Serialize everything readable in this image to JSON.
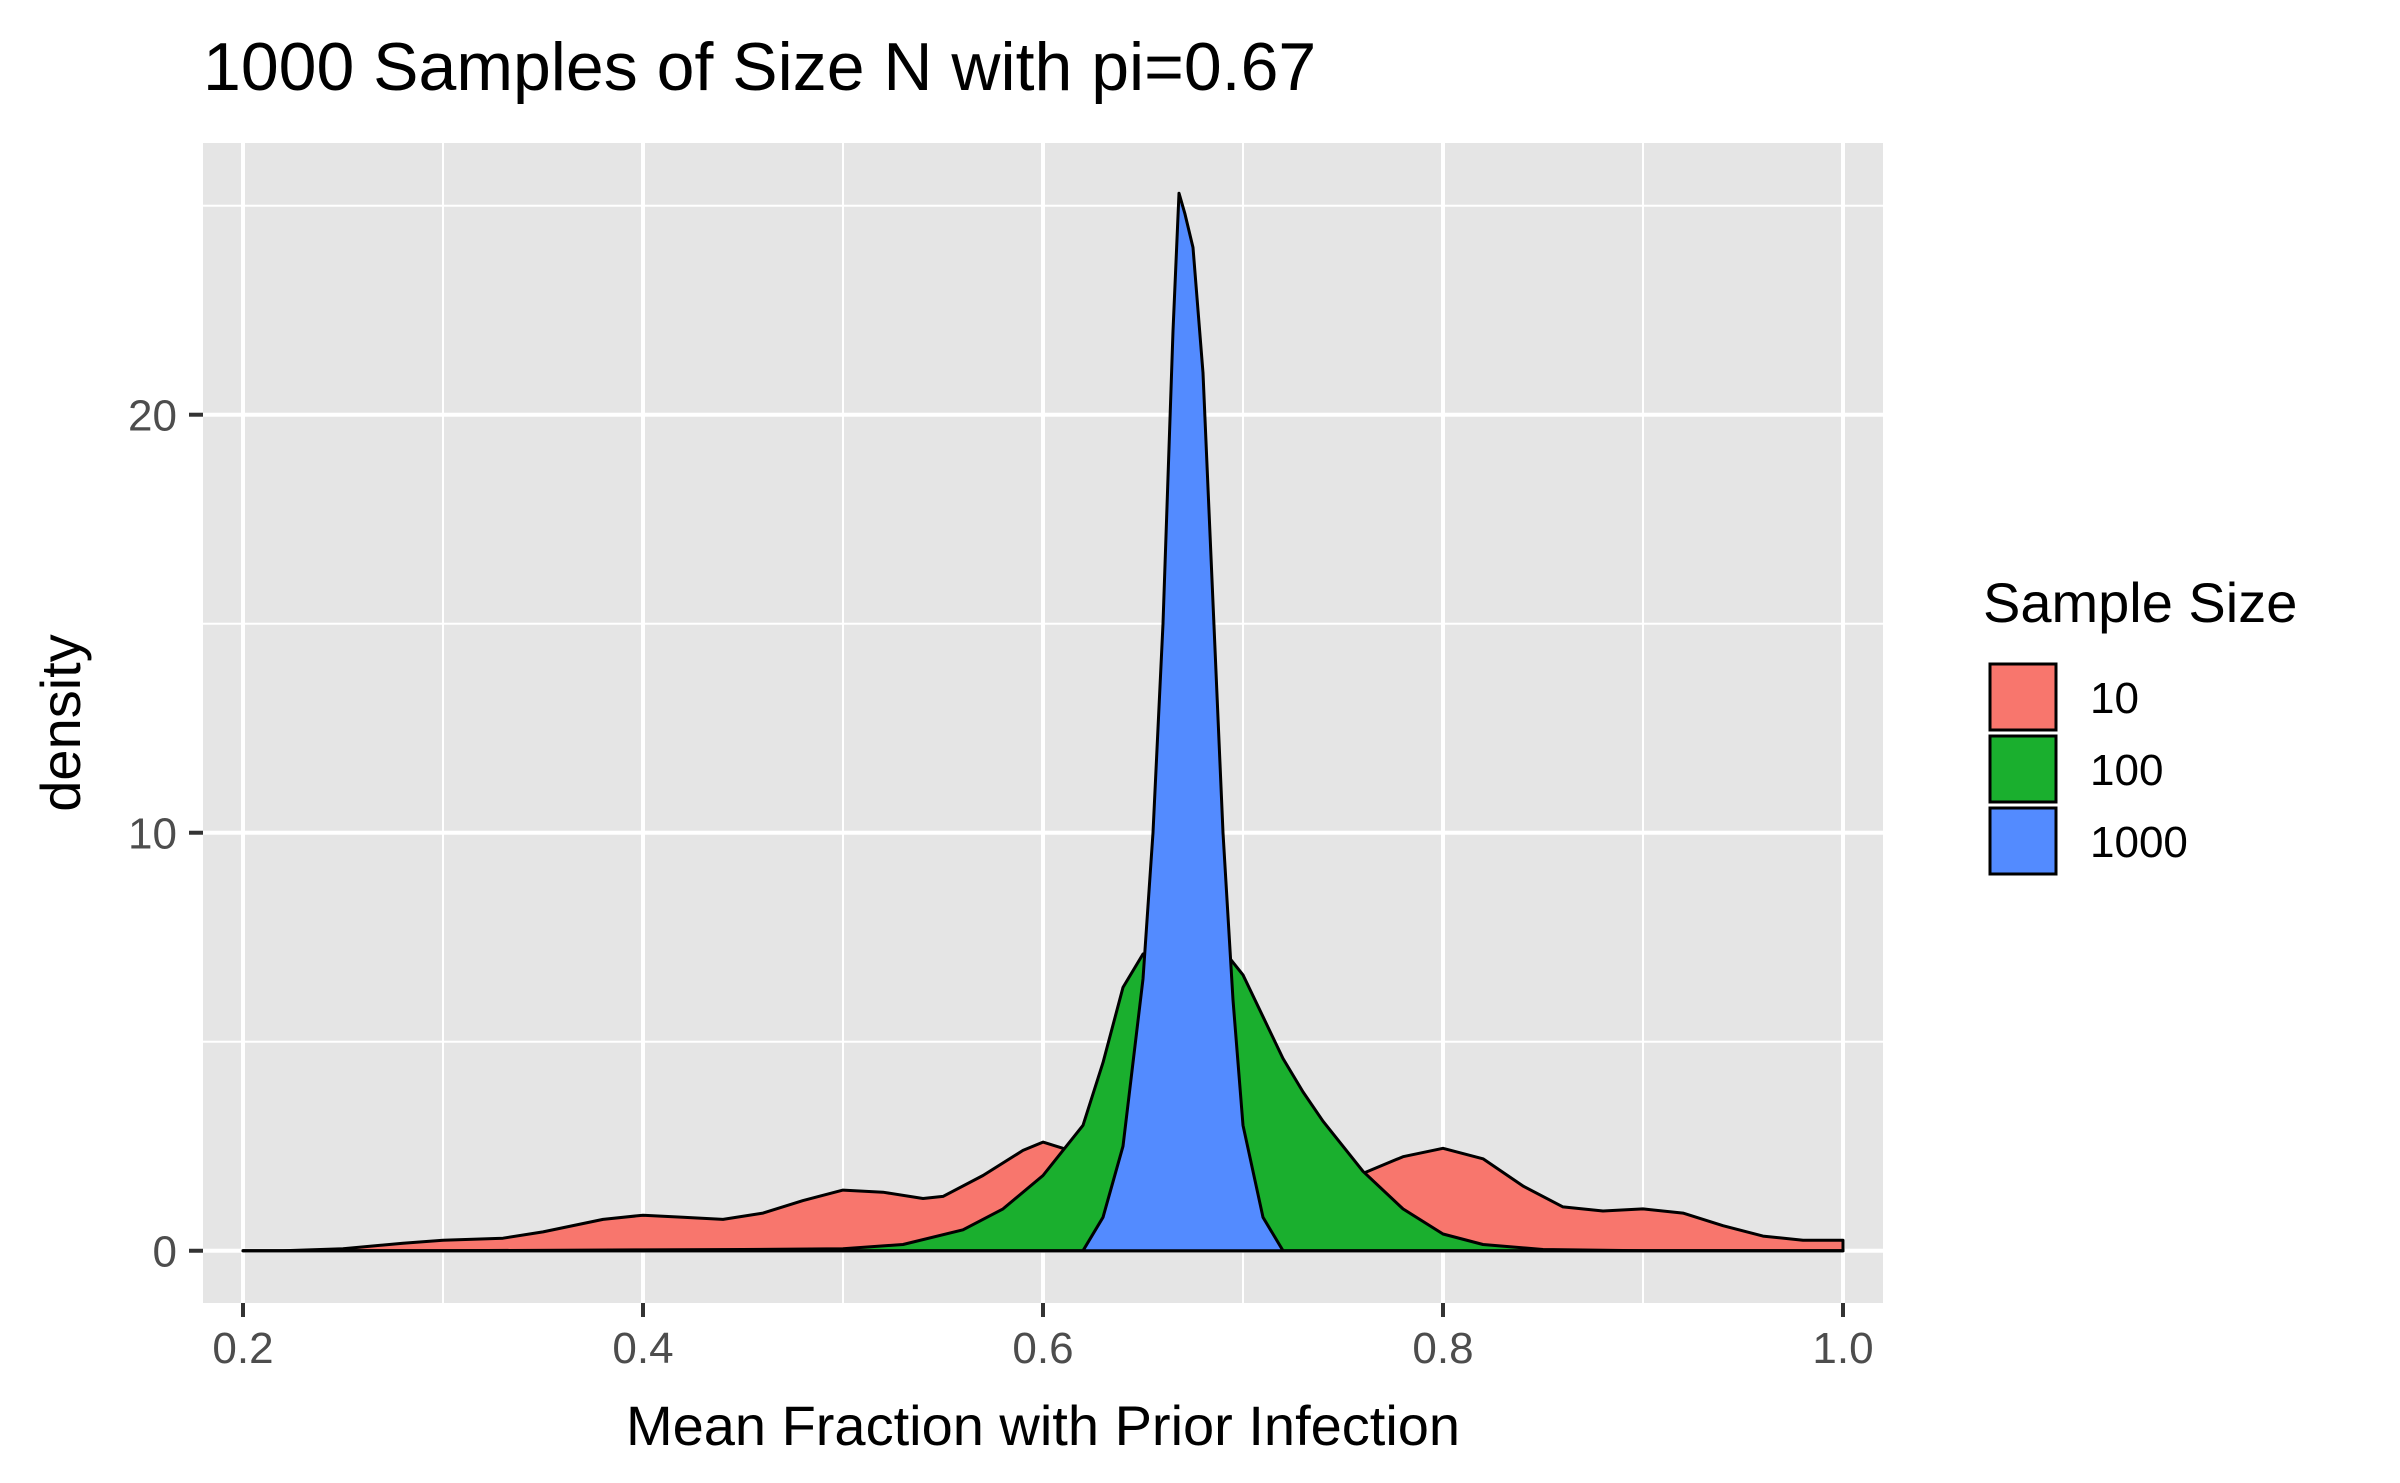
{
  "chart_data": {
    "type": "area",
    "subtype": "density",
    "title": "1000 Samples of Size N with pi=0.67",
    "xlabel": "Mean Fraction with Prior Infection",
    "ylabel": "density",
    "xlim": [
      0.18,
      1.02
    ],
    "ylim": [
      -1.25,
      26.5
    ],
    "x_ticks": [
      0.2,
      0.4,
      0.6,
      0.8,
      1.0
    ],
    "x_tick_labels": [
      "0.2",
      "0.4",
      "0.6",
      "0.8",
      "1.0"
    ],
    "y_ticks": [
      0,
      10,
      20
    ],
    "y_tick_labels": [
      "0",
      "10",
      "20"
    ],
    "grid": true,
    "legend": {
      "title": "Sample Size",
      "position": "right"
    },
    "series": [
      {
        "name": "10",
        "color": "#F8766D",
        "points": [
          [
            0.2,
            0.0
          ],
          [
            0.22,
            0.0
          ],
          [
            0.25,
            0.05
          ],
          [
            0.28,
            0.18
          ],
          [
            0.3,
            0.25
          ],
          [
            0.33,
            0.3
          ],
          [
            0.35,
            0.45
          ],
          [
            0.38,
            0.75
          ],
          [
            0.4,
            0.85
          ],
          [
            0.42,
            0.8
          ],
          [
            0.44,
            0.75
          ],
          [
            0.46,
            0.9
          ],
          [
            0.48,
            1.2
          ],
          [
            0.5,
            1.45
          ],
          [
            0.52,
            1.4
          ],
          [
            0.54,
            1.25
          ],
          [
            0.55,
            1.3
          ],
          [
            0.57,
            1.8
          ],
          [
            0.59,
            2.4
          ],
          [
            0.6,
            2.6
          ],
          [
            0.61,
            2.45
          ],
          [
            0.62,
            2.1
          ],
          [
            0.64,
            1.6
          ],
          [
            0.66,
            1.35
          ],
          [
            0.68,
            1.35
          ],
          [
            0.7,
            1.4
          ],
          [
            0.72,
            1.5
          ],
          [
            0.74,
            1.65
          ],
          [
            0.76,
            1.85
          ],
          [
            0.78,
            2.25
          ],
          [
            0.8,
            2.45
          ],
          [
            0.82,
            2.2
          ],
          [
            0.84,
            1.55
          ],
          [
            0.86,
            1.05
          ],
          [
            0.88,
            0.95
          ],
          [
            0.9,
            1.0
          ],
          [
            0.92,
            0.9
          ],
          [
            0.94,
            0.6
          ],
          [
            0.96,
            0.35
          ],
          [
            0.98,
            0.25
          ],
          [
            1.0,
            0.25
          ]
        ]
      },
      {
        "name": "100",
        "color": "#1AAF2E",
        "points": [
          [
            0.2,
            0.0
          ],
          [
            0.3,
            0.0
          ],
          [
            0.4,
            0.02
          ],
          [
            0.45,
            0.03
          ],
          [
            0.5,
            0.05
          ],
          [
            0.53,
            0.15
          ],
          [
            0.56,
            0.5
          ],
          [
            0.58,
            1.0
          ],
          [
            0.6,
            1.8
          ],
          [
            0.62,
            3.0
          ],
          [
            0.63,
            4.5
          ],
          [
            0.64,
            6.3
          ],
          [
            0.65,
            7.1
          ],
          [
            0.66,
            7.2
          ],
          [
            0.67,
            6.9
          ],
          [
            0.68,
            7.0
          ],
          [
            0.69,
            7.2
          ],
          [
            0.7,
            6.6
          ],
          [
            0.71,
            5.6
          ],
          [
            0.72,
            4.6
          ],
          [
            0.73,
            3.8
          ],
          [
            0.74,
            3.1
          ],
          [
            0.76,
            1.9
          ],
          [
            0.78,
            1.0
          ],
          [
            0.8,
            0.4
          ],
          [
            0.82,
            0.15
          ],
          [
            0.85,
            0.03
          ],
          [
            0.9,
            0.0
          ],
          [
            1.0,
            0.0
          ]
        ]
      },
      {
        "name": "1000",
        "color": "#538BFF",
        "points": [
          [
            0.2,
            0.0
          ],
          [
            0.5,
            0.0
          ],
          [
            0.6,
            0.0
          ],
          [
            0.62,
            0.0
          ],
          [
            0.63,
            0.8
          ],
          [
            0.64,
            2.5
          ],
          [
            0.65,
            6.5
          ],
          [
            0.655,
            10.0
          ],
          [
            0.66,
            15.0
          ],
          [
            0.665,
            22.0
          ],
          [
            0.668,
            25.3
          ],
          [
            0.671,
            24.8
          ],
          [
            0.675,
            24.0
          ],
          [
            0.68,
            21.0
          ],
          [
            0.685,
            15.5
          ],
          [
            0.69,
            10.0
          ],
          [
            0.695,
            6.0
          ],
          [
            0.7,
            3.0
          ],
          [
            0.71,
            0.8
          ],
          [
            0.72,
            0.0
          ],
          [
            0.73,
            0.0
          ],
          [
            0.8,
            0.0
          ],
          [
            1.0,
            0.0
          ]
        ]
      }
    ]
  }
}
